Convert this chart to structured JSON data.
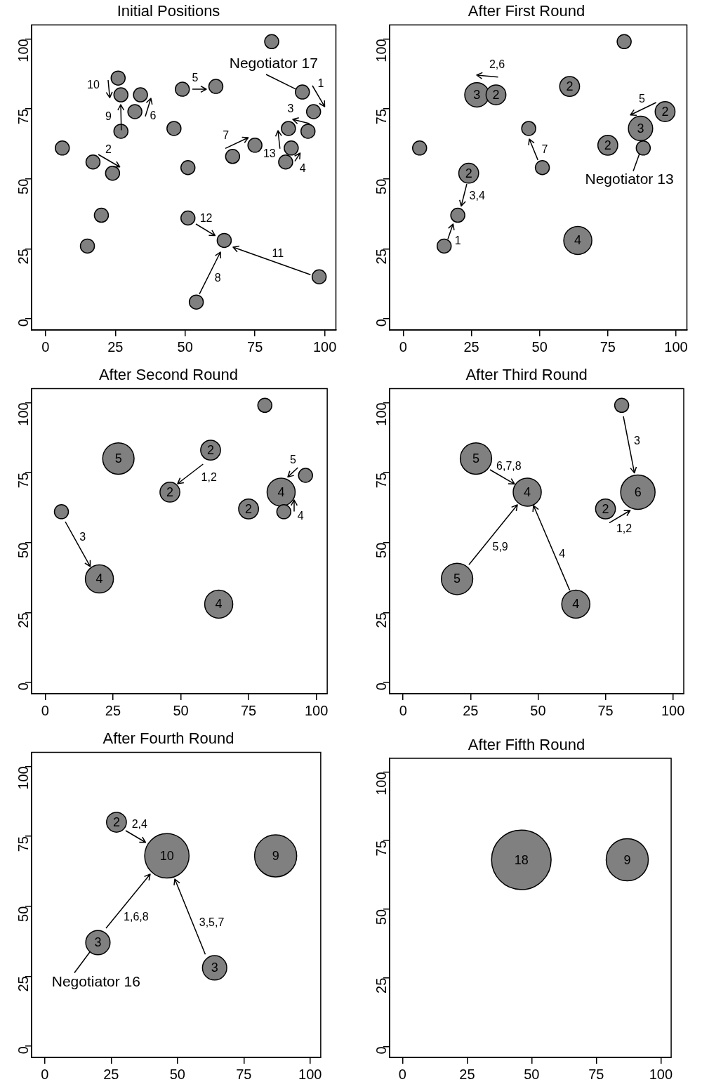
{
  "chart_data": [
    {
      "type": "bubble",
      "title": "Initial Positions",
      "color": "#808080",
      "xlim": [
        -5,
        104
      ],
      "ylim": [
        -4,
        105
      ],
      "xticks": [
        0,
        25,
        50,
        75,
        100
      ],
      "yticks": [
        0,
        25,
        50,
        75,
        100
      ],
      "grid": false,
      "marker": "circle",
      "x": [
        81,
        92,
        96,
        94,
        87,
        88,
        86,
        75,
        67,
        61,
        49,
        46,
        51,
        26,
        27,
        34,
        32,
        27,
        6,
        17,
        24,
        20,
        15,
        51,
        64,
        98,
        54
      ],
      "values": [
        99,
        81,
        74,
        67,
        68,
        61,
        56,
        62,
        58,
        83,
        82,
        68,
        54,
        86,
        80,
        80,
        74,
        67,
        61,
        56,
        52,
        37,
        26,
        36,
        28,
        15,
        6
      ],
      "annotations": [
        {
          "text": "Negotiator 17",
          "x": 92,
          "y": 81
        },
        {
          "text": "1",
          "x": 96,
          "y": 74
        },
        {
          "text": "10",
          "x": 27,
          "y": 80
        },
        {
          "text": "9",
          "x": 27,
          "y": 80
        },
        {
          "text": "6",
          "x": 34,
          "y": 80
        },
        {
          "text": "5",
          "x": 61,
          "y": 83
        },
        {
          "text": "2",
          "x": 24,
          "y": 52
        },
        {
          "text": "7",
          "x": 75,
          "y": 62
        },
        {
          "text": "13",
          "x": 87,
          "y": 68
        },
        {
          "text": "3",
          "x": 87,
          "y": 68
        },
        {
          "text": "4",
          "x": 88,
          "y": 61
        },
        {
          "text": "12",
          "x": 64,
          "y": 28
        },
        "11",
        {
          "text": "8",
          "x": 64,
          "y": 28
        }
      ]
    },
    {
      "type": "bubble",
      "title": "After First Round",
      "color": "#808080",
      "xlim": [
        -5,
        104
      ],
      "ylim": [
        -4,
        105
      ],
      "xticks": [
        0,
        25,
        50,
        75,
        100
      ],
      "yticks": [
        0,
        25,
        50,
        75,
        100
      ],
      "grid": false,
      "marker": "circle",
      "x": [
        81,
        27,
        34,
        61,
        96,
        87,
        75,
        88,
        46,
        51,
        6,
        24,
        20,
        15,
        64
      ],
      "values": [
        99,
        80,
        80,
        83,
        74,
        68,
        62,
        61,
        68,
        54,
        61,
        52,
        37,
        26,
        28
      ],
      "sizes": [
        null,
        3,
        2,
        2,
        2,
        3,
        2,
        null,
        null,
        null,
        null,
        2,
        null,
        null,
        4
      ],
      "value_labels": [
        null,
        "3",
        "2",
        "2",
        "2",
        "3",
        "2",
        null,
        null,
        null,
        null,
        "2",
        null,
        null,
        "4"
      ],
      "annotations": [
        {
          "text": "2,6",
          "x": 27,
          "y": 80
        },
        {
          "text": "5",
          "x": 87,
          "y": 68
        },
        {
          "text": "7",
          "x": 46,
          "y": 68
        },
        {
          "text": "3,4",
          "x": 20,
          "y": 37
        },
        {
          "text": "1",
          "x": 20,
          "y": 37
        },
        {
          "text": "Negotiator 13",
          "x": 88,
          "y": 61
        }
      ]
    },
    {
      "type": "bubble",
      "title": "After Second Round",
      "color": "#808080",
      "xlim": [
        -5,
        104
      ],
      "ylim": [
        -4,
        105
      ],
      "xticks": [
        0,
        25,
        50,
        75,
        100
      ],
      "yticks": [
        0,
        25,
        50,
        75,
        100
      ],
      "grid": false,
      "marker": "circle",
      "x": [
        81,
        27,
        61,
        46,
        96,
        87,
        75,
        88,
        6,
        20,
        64
      ],
      "values": [
        99,
        80,
        83,
        68,
        74,
        68,
        62,
        61,
        61,
        37,
        28
      ],
      "sizes": [
        null,
        5,
        2,
        2,
        null,
        4,
        2,
        null,
        null,
        4,
        4
      ],
      "value_labels": [
        null,
        "5",
        "2",
        "2",
        null,
        "4",
        "2",
        null,
        null,
        "4",
        "4"
      ],
      "annotations": [
        {
          "text": "1,2",
          "x": 46,
          "y": 68
        },
        {
          "text": "5",
          "x": 87,
          "y": 68
        },
        {
          "text": "4",
          "x": 87,
          "y": 68
        },
        "3"
      ]
    },
    {
      "type": "bubble",
      "title": "After Third Round",
      "color": "#808080",
      "xlim": [
        -5,
        104
      ],
      "ylim": [
        -4,
        105
      ],
      "xticks": [
        0,
        25,
        50,
        75,
        100
      ],
      "yticks": [
        0,
        25,
        50,
        75,
        100
      ],
      "grid": false,
      "marker": "circle",
      "x": [
        81,
        27,
        46,
        75,
        87,
        20,
        64
      ],
      "values": [
        99,
        80,
        68,
        62,
        68,
        37,
        28
      ],
      "sizes": [
        null,
        5,
        4,
        2,
        6,
        5,
        4
      ],
      "value_labels": [
        null,
        "5",
        "4",
        "2",
        "6",
        "5",
        "4"
      ],
      "annotations": [
        "3",
        {
          "text": "6,7,8",
          "x": 46,
          "y": 68
        },
        "5,9",
        "4",
        {
          "text": "1,2",
          "x": 87,
          "y": 68
        }
      ]
    },
    {
      "type": "bubble",
      "title": "After Fourth Round",
      "color": "#808080",
      "xlim": [
        -5,
        104
      ],
      "ylim": [
        -4,
        105
      ],
      "xticks": [
        0,
        25,
        50,
        75,
        100
      ],
      "yticks": [
        0,
        25,
        50,
        75,
        100
      ],
      "grid": false,
      "marker": "circle",
      "x": [
        27,
        46,
        87,
        20,
        64
      ],
      "values": [
        80,
        68,
        68,
        37,
        28
      ],
      "sizes": [
        2,
        10,
        9,
        3,
        3
      ],
      "value_labels": [
        "2",
        "10",
        "9",
        "3",
        "3"
      ],
      "annotations": [
        {
          "text": "2,4",
          "x": 46,
          "y": 68
        },
        "1,6,8",
        "3,5,7",
        {
          "text": "Negotiator 16",
          "x": 20,
          "y": 37
        }
      ]
    },
    {
      "type": "bubble",
      "title": "After Fifth Round",
      "color": "#808080",
      "xlim": [
        -5,
        104
      ],
      "ylim": [
        -4,
        105
      ],
      "xticks": [
        0,
        25,
        50,
        75,
        100
      ],
      "yticks": [
        0,
        25,
        50,
        75,
        100
      ],
      "grid": false,
      "marker": "circle",
      "x": [
        46,
        87
      ],
      "values": [
        68,
        68
      ],
      "sizes": [
        18,
        9
      ],
      "value_labels": [
        "18",
        "9"
      ]
    }
  ]
}
